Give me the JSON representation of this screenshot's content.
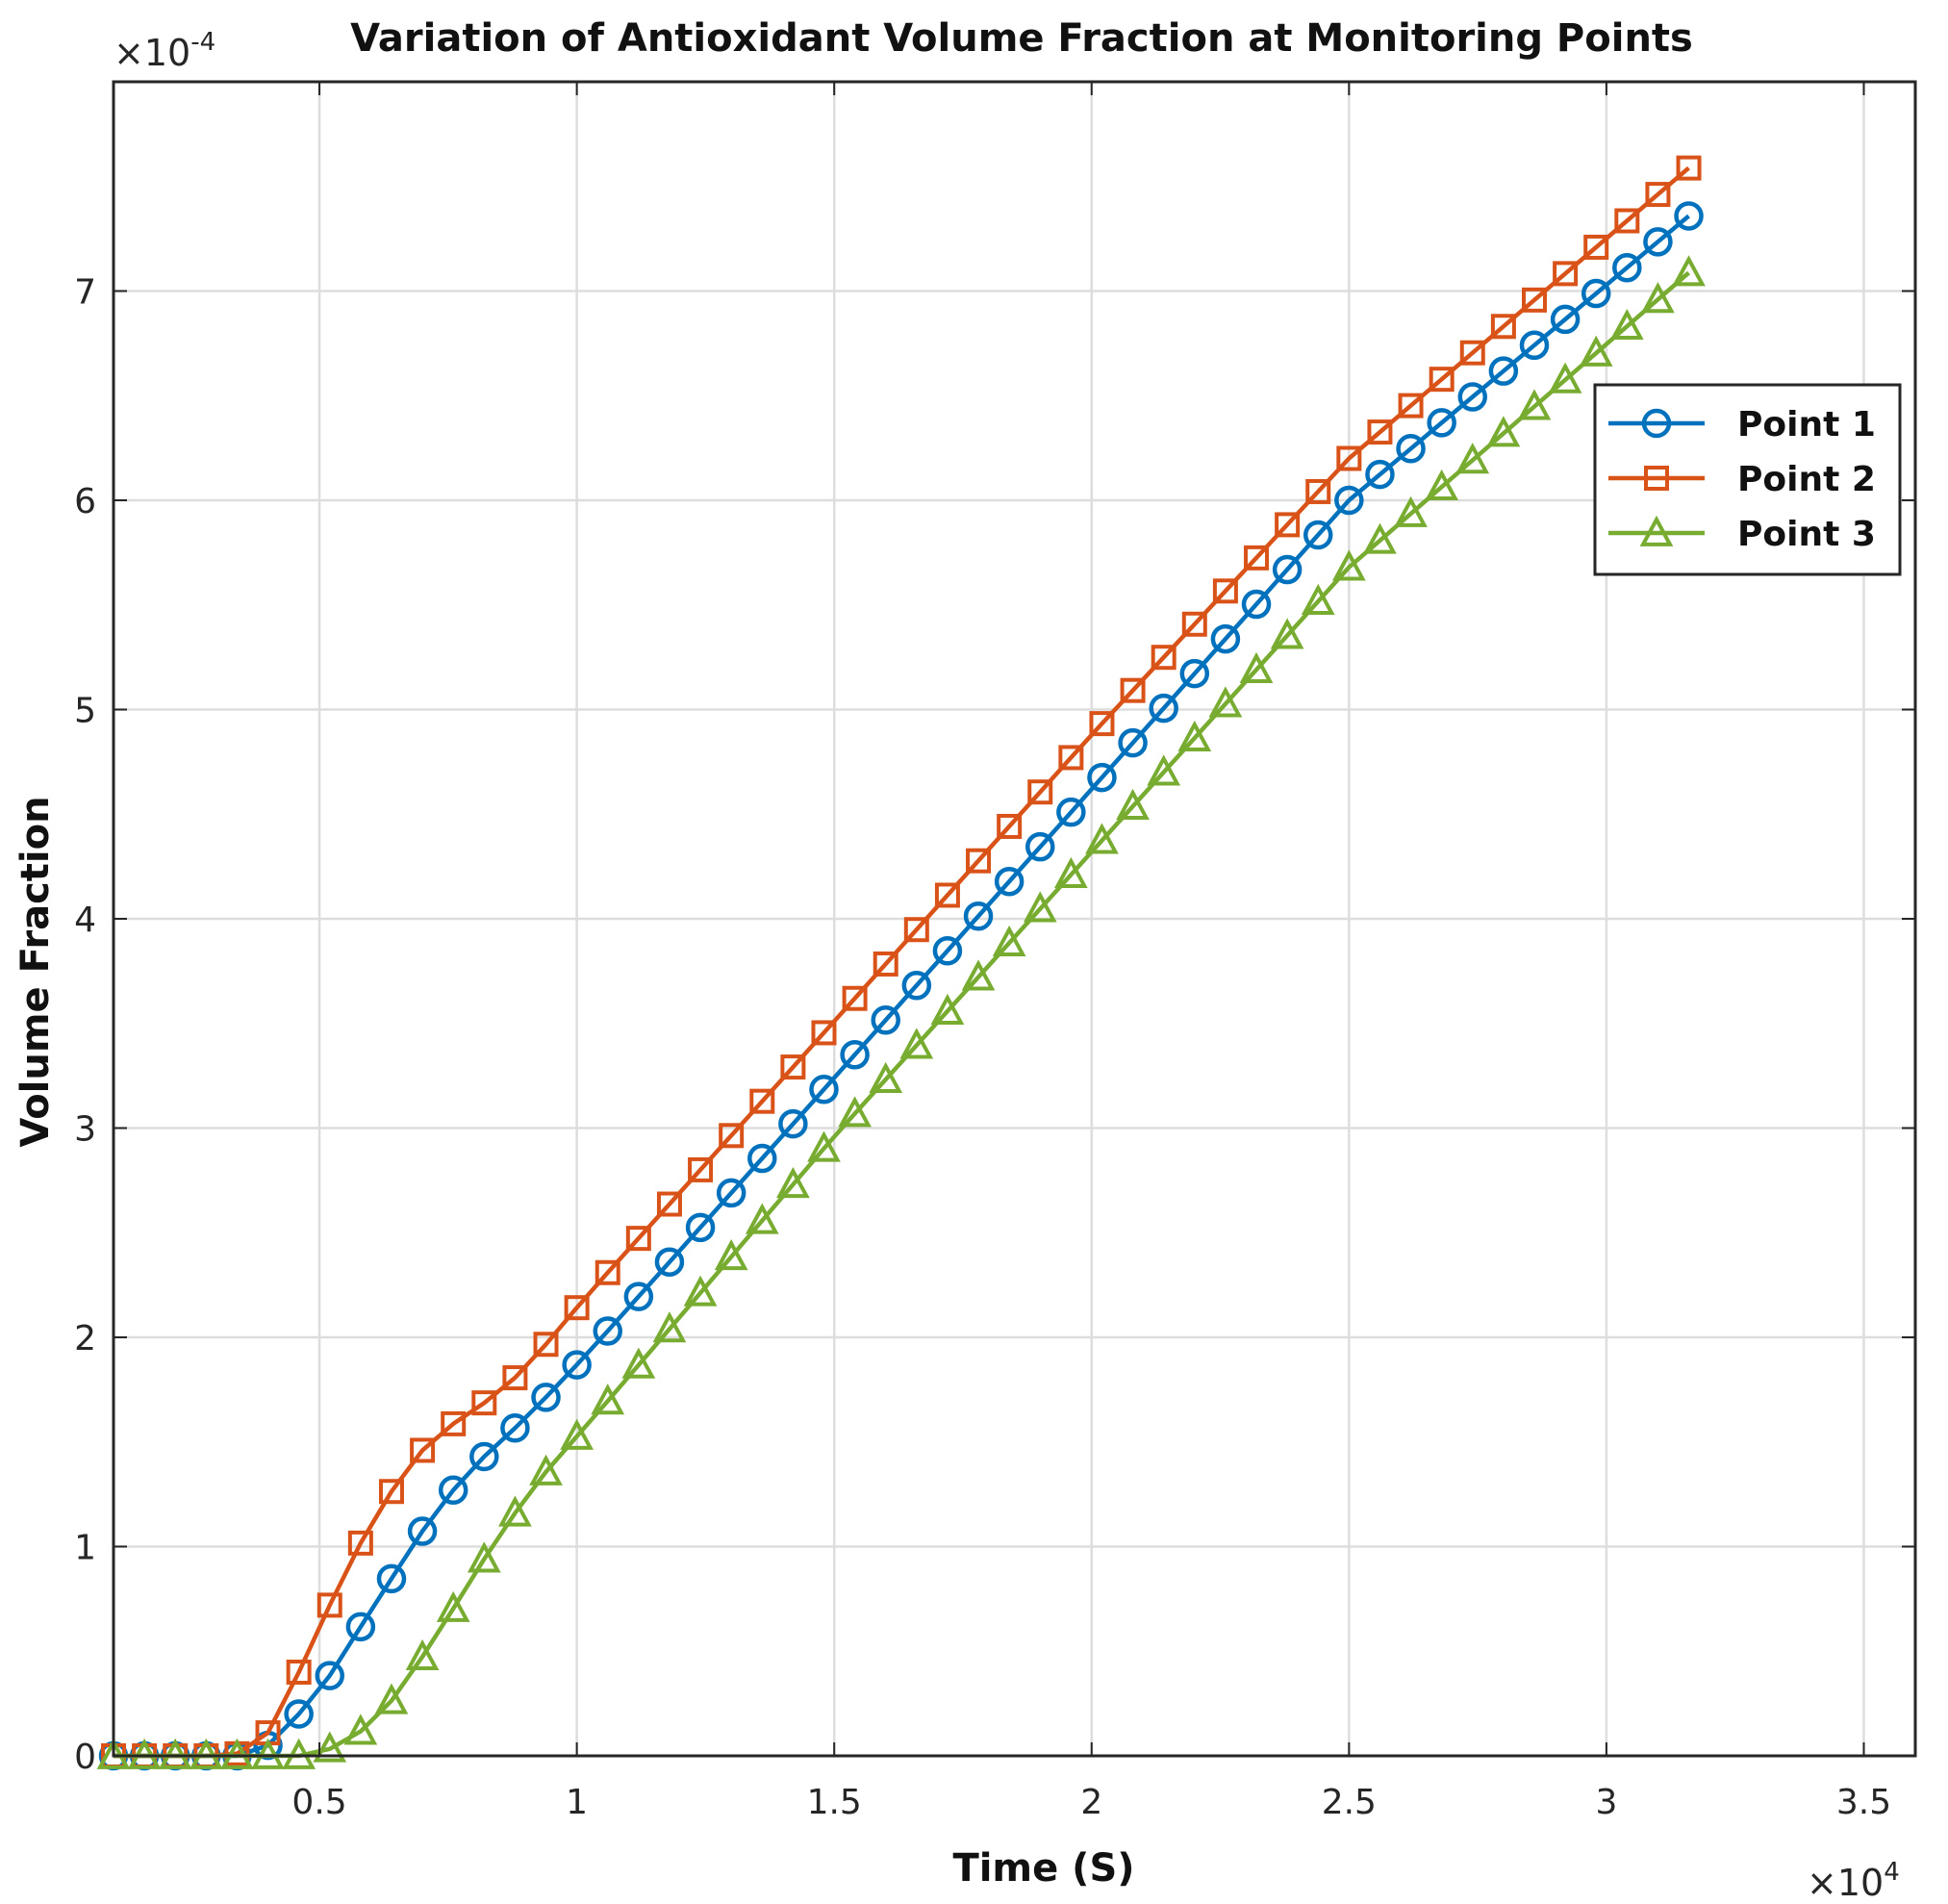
{
  "chart_data": {
    "type": "line",
    "title": "Variation of Antioxidant Volume Fraction at Monitoring Points",
    "xlabel": "Time (S)",
    "ylabel": "Volume Fraction",
    "x_multiplier": "×10",
    "x_multiplier_exp": "4",
    "y_multiplier": "×10",
    "y_multiplier_exp": "-4",
    "xlim": [
      1000,
      36000
    ],
    "ylim": [
      0,
      8
    ],
    "x_ticks": [
      5000,
      10000,
      15000,
      20000,
      25000,
      30000,
      35000
    ],
    "x_tick_labels": [
      "0.5",
      "1",
      "1.5",
      "2",
      "2.5",
      "3",
      "3.5"
    ],
    "y_ticks": [
      0,
      1,
      2,
      3,
      4,
      5,
      6,
      7
    ],
    "y_tick_labels": [
      "0",
      "1",
      "2",
      "3",
      "4",
      "5",
      "6",
      "7"
    ],
    "grid": true,
    "legend_position": "top-right",
    "marker_spacing": 600,
    "series": [
      {
        "name": "Point 1",
        "color": "#0072BD",
        "marker": "circle",
        "anchors": [
          [
            1000,
            0
          ],
          [
            3600,
            0
          ],
          [
            4000,
            0.05
          ],
          [
            4800,
            0.25
          ],
          [
            5400,
            0.45
          ],
          [
            6000,
            0.7
          ],
          [
            6600,
            0.92
          ],
          [
            7200,
            1.15
          ],
          [
            7800,
            1.33
          ],
          [
            8400,
            1.48
          ],
          [
            9000,
            1.61
          ],
          [
            10200,
            1.92
          ],
          [
            15000,
            3.24
          ],
          [
            20000,
            4.62
          ],
          [
            25000,
            6.0
          ],
          [
            31800,
            7.4
          ]
        ]
      },
      {
        "name": "Point 2",
        "color": "#D95319",
        "marker": "square",
        "anchors": [
          [
            1000,
            0
          ],
          [
            3000,
            0
          ],
          [
            3800,
            0.02
          ],
          [
            4200,
            0.2
          ],
          [
            4800,
            0.5
          ],
          [
            5400,
            0.83
          ],
          [
            6000,
            1.11
          ],
          [
            6600,
            1.34
          ],
          [
            7200,
            1.52
          ],
          [
            7800,
            1.62
          ],
          [
            8400,
            1.72
          ],
          [
            9000,
            1.85
          ],
          [
            10200,
            2.2
          ],
          [
            15000,
            3.51
          ],
          [
            20000,
            4.88
          ],
          [
            25000,
            6.2
          ],
          [
            31800,
            7.63
          ]
        ]
      },
      {
        "name": "Point 3",
        "color": "#77AC30",
        "marker": "triangle",
        "anchors": [
          [
            1000,
            0
          ],
          [
            4800,
            0
          ],
          [
            5400,
            0.05
          ],
          [
            6000,
            0.15
          ],
          [
            6600,
            0.32
          ],
          [
            7200,
            0.55
          ],
          [
            7800,
            0.78
          ],
          [
            8400,
            1.02
          ],
          [
            9000,
            1.23
          ],
          [
            9600,
            1.42
          ],
          [
            10200,
            1.58
          ],
          [
            15000,
            2.96
          ],
          [
            20000,
            4.32
          ],
          [
            25000,
            5.68
          ],
          [
            31800,
            7.13
          ]
        ]
      }
    ]
  }
}
